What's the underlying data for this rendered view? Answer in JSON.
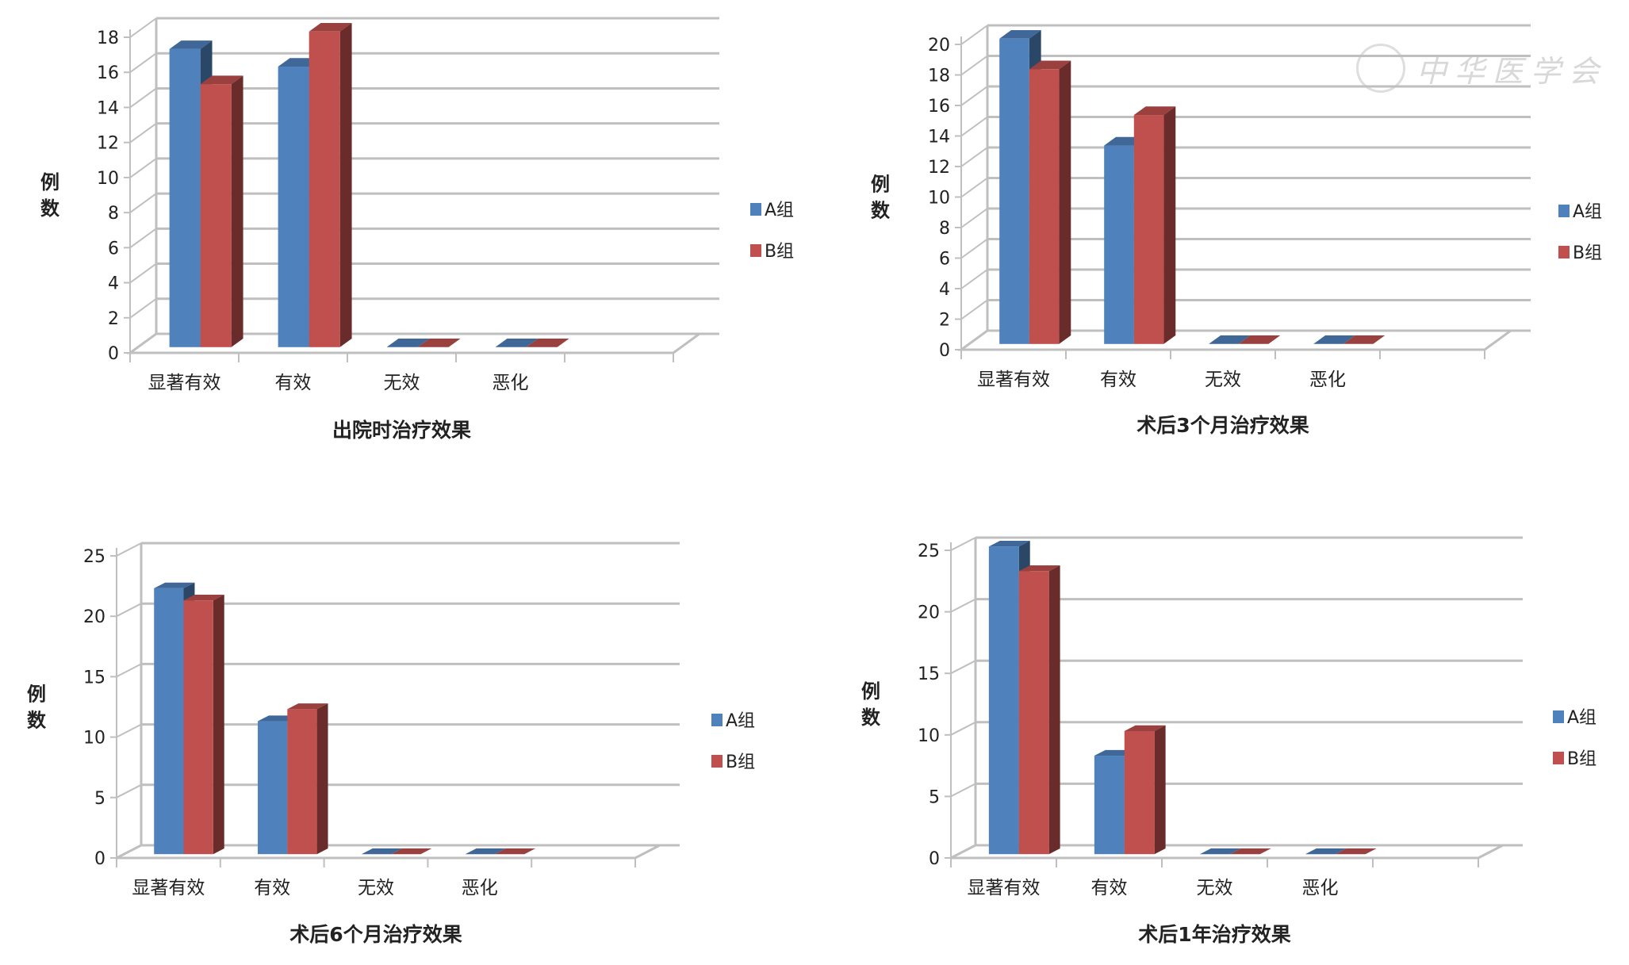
{
  "watermark": "中华医学会",
  "colors": {
    "A": "#4f81bd",
    "B": "#c0504d",
    "grid": "#bfbfbf"
  },
  "chart_data": [
    {
      "type": "bar",
      "title": "出院时治疗效果",
      "ylabel": "例数",
      "categories": [
        "显著有效",
        "有效",
        "无效",
        "恶化"
      ],
      "ylim": [
        0,
        18
      ],
      "ytick_step": 2,
      "grid": true,
      "legend": "right",
      "series": [
        {
          "name": "A组",
          "values": [
            17,
            16,
            0,
            0
          ]
        },
        {
          "name": "B组",
          "values": [
            15,
            18,
            0,
            0
          ]
        }
      ]
    },
    {
      "type": "bar",
      "title": "术后3个月治疗效果",
      "ylabel": "例数",
      "categories": [
        "显著有效",
        "有效",
        "无效",
        "恶化"
      ],
      "ylim": [
        0,
        20
      ],
      "ytick_step": 2,
      "grid": true,
      "legend": "right",
      "series": [
        {
          "name": "A组",
          "values": [
            20,
            13,
            0,
            0
          ]
        },
        {
          "name": "B组",
          "values": [
            18,
            15,
            0,
            0
          ]
        }
      ]
    },
    {
      "type": "bar",
      "title": "术后6个月治疗效果",
      "ylabel": "例数",
      "categories": [
        "显著有效",
        "有效",
        "无效",
        "恶化"
      ],
      "ylim": [
        0,
        25
      ],
      "ytick_step": 5,
      "grid": true,
      "legend": "right",
      "series": [
        {
          "name": "A组",
          "values": [
            22,
            11,
            0,
            0
          ]
        },
        {
          "name": "B组",
          "values": [
            21,
            12,
            0,
            0
          ]
        }
      ]
    },
    {
      "type": "bar",
      "title": "术后1年治疗效果",
      "ylabel": "例数",
      "categories": [
        "显著有效",
        "有效",
        "无效",
        "恶化"
      ],
      "ylim": [
        0,
        25
      ],
      "ytick_step": 5,
      "grid": true,
      "legend": "right",
      "series": [
        {
          "name": "A组",
          "values": [
            25,
            8,
            0,
            0
          ]
        },
        {
          "name": "B组",
          "values": [
            23,
            10,
            0,
            0
          ]
        }
      ]
    }
  ]
}
